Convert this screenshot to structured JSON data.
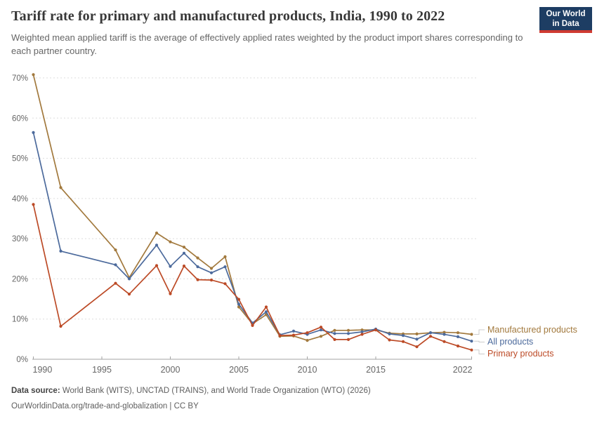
{
  "header": {
    "title": "Tariff rate for primary and manufactured products, India, 1990 to 2022",
    "subtitle": "Weighted mean applied tariff is the average of effectively applied rates weighted by the product import shares corresponding to each partner country.",
    "logo": {
      "line1": "Our World",
      "line2": "in Data",
      "bg_color": "#1d3d63",
      "stripe_color": "#cf3b32"
    }
  },
  "chart_data": {
    "type": "line",
    "title": "Tariff rate for primary and manufactured products, India, 1990 to 2022",
    "xlabel": "",
    "ylabel": "",
    "x": [
      1990,
      1992,
      1996,
      1997,
      1999,
      2000,
      2001,
      2002,
      2003,
      2004,
      2005,
      2006,
      2007,
      2008,
      2009,
      2010,
      2011,
      2012,
      2013,
      2014,
      2015,
      2016,
      2017,
      2018,
      2019,
      2020,
      2021,
      2022
    ],
    "series": [
      {
        "name": "Manufactured products",
        "color": "#a2793d",
        "values": [
          70.8,
          42.7,
          27.2,
          20.3,
          31.4,
          29.2,
          27.9,
          25.2,
          22.6,
          25.5,
          13.0,
          8.8,
          11.1,
          5.7,
          5.8,
          4.7,
          5.7,
          7.2,
          7.2,
          7.3,
          7.3,
          6.5,
          6.3,
          6.3,
          6.6,
          6.7,
          6.6,
          6.2
        ]
      },
      {
        "name": "All products",
        "color": "#4c6a9c",
        "values": [
          56.4,
          26.9,
          23.5,
          20.0,
          28.4,
          23.1,
          26.4,
          23.0,
          21.5,
          23.0,
          13.7,
          9.0,
          11.8,
          6.1,
          7.0,
          6.2,
          7.3,
          6.4,
          6.4,
          6.8,
          7.5,
          6.3,
          5.9,
          5.0,
          6.6,
          6.2,
          5.6,
          4.5
        ]
      },
      {
        "name": "Primary products",
        "color": "#bc4a26",
        "values": [
          38.5,
          8.2,
          18.9,
          16.2,
          23.3,
          16.3,
          23.2,
          19.8,
          19.7,
          18.8,
          14.9,
          8.4,
          13.0,
          5.9,
          6.0,
          6.6,
          8.0,
          4.9,
          4.9,
          6.2,
          7.3,
          4.8,
          4.4,
          3.1,
          5.7,
          4.4,
          3.3,
          2.3
        ]
      }
    ],
    "ylim": [
      0,
      70
    ],
    "y_ticks": [
      "0%",
      "10%",
      "20%",
      "30%",
      "40%",
      "50%",
      "60%",
      "70%"
    ],
    "x_ticks": [
      {
        "year": 1990,
        "label": "1990"
      },
      {
        "year": 1995,
        "label": "1995"
      },
      {
        "year": 2000,
        "label": "2000"
      },
      {
        "year": 2005,
        "label": "2005"
      },
      {
        "year": 2010,
        "label": "2010"
      },
      {
        "year": 2015,
        "label": "2015"
      },
      {
        "year": 2022,
        "label": "2022"
      }
    ],
    "grid": "horizontal-dashed",
    "legend_position": "right-of-line-ends"
  },
  "legend": {
    "items": [
      {
        "label": "Manufactured products",
        "color": "#a2793d"
      },
      {
        "label": "All products",
        "color": "#4c6a9c"
      },
      {
        "label": "Primary products",
        "color": "#bc4a26"
      }
    ]
  },
  "footer": {
    "source_label": "Data source:",
    "source_text": " World Bank (WITS), UNCTAD (TRAINS), and World Trade Organization (WTO) (2026)",
    "attribution": "OurWorldinData.org/trade-and-globalization | CC BY"
  }
}
